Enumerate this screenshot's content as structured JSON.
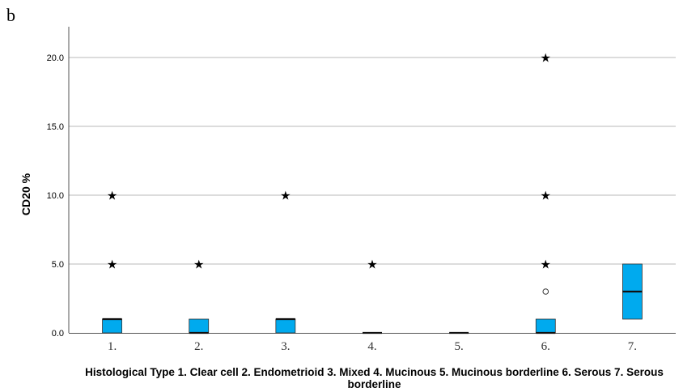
{
  "panel_label": "b",
  "chart_data": {
    "type": "boxplot",
    "ylabel": "CD20 %",
    "xlabel": "Histological Type 1. Clear cell 2. Endometrioid 3. Mixed 4. Mucinous 5. Mucinous borderline 6. Serous 7. Serous borderline",
    "categories": [
      "1.",
      "2.",
      "3.",
      "4.",
      "5.",
      "6.",
      "7."
    ],
    "yticks": [
      0.0,
      5.0,
      10.0,
      15.0,
      20.0
    ],
    "ytick_labels": [
      "0.0",
      "5.0",
      "10.0",
      "15.0",
      "20.0"
    ],
    "ylim": [
      0,
      22.5
    ],
    "grid": true,
    "box_color": "#00aaee",
    "boxes": [
      {
        "category": "1.",
        "q1": 0,
        "median": 1,
        "q3": 1,
        "outliers": [],
        "extremes": [
          5,
          10
        ]
      },
      {
        "category": "2.",
        "q1": 0,
        "median": 0,
        "q3": 1,
        "outliers": [],
        "extremes": [
          5
        ]
      },
      {
        "category": "3.",
        "q1": 0,
        "median": 1,
        "q3": 1,
        "outliers": [],
        "extremes": [
          10
        ]
      },
      {
        "category": "4.",
        "q1": 0,
        "median": 0,
        "q3": 0,
        "outliers": [],
        "extremes": [
          5
        ]
      },
      {
        "category": "5.",
        "q1": 0,
        "median": 0,
        "q3": 0,
        "outliers": [],
        "extremes": []
      },
      {
        "category": "6.",
        "q1": 0,
        "median": 0,
        "q3": 1,
        "outliers": [
          3
        ],
        "extremes": [
          5,
          10,
          20
        ]
      },
      {
        "category": "7.",
        "q1": 1,
        "median": 3,
        "q3": 5,
        "outliers": [],
        "extremes": []
      }
    ]
  }
}
